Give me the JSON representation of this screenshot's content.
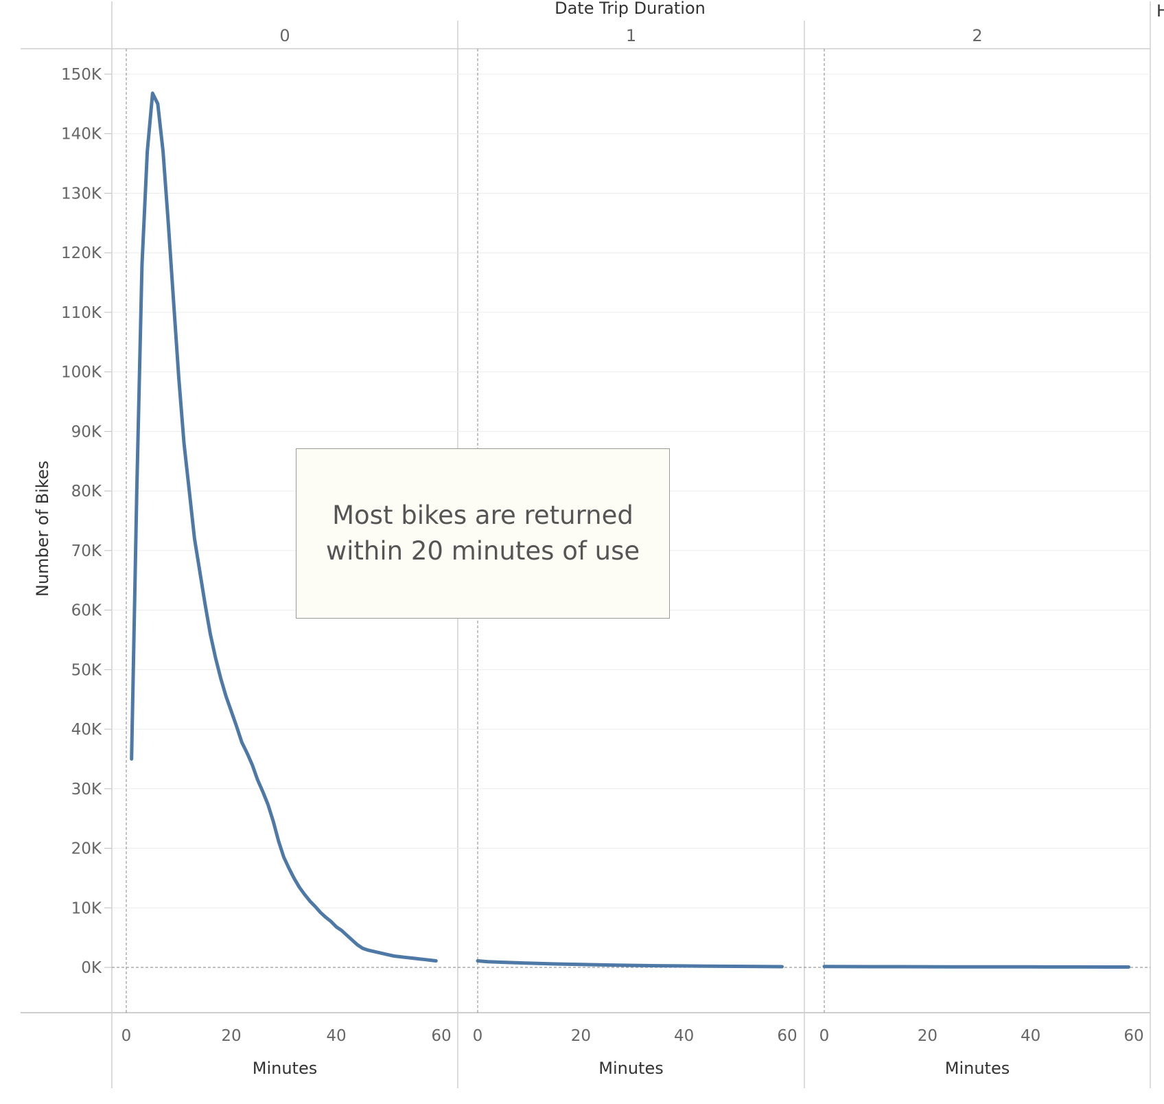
{
  "header": {
    "column_title": "Date Trip Duration",
    "right_cutoff": "H"
  },
  "annotation": {
    "text": "Most bikes are returned within 20 minutes of use"
  },
  "line_color": "#4e79a7",
  "chart_data": {
    "type": "line",
    "title": "",
    "ylabel": "Number of Bikes",
    "xlabel": "Minutes",
    "ylim": [
      0,
      155000
    ],
    "y_ticks": [
      "0K",
      "10K",
      "20K",
      "30K",
      "40K",
      "50K",
      "60K",
      "70K",
      "80K",
      "90K",
      "100K",
      "110K",
      "120K",
      "130K",
      "140K",
      "150K"
    ],
    "y_tick_values": [
      0,
      10000,
      20000,
      30000,
      40000,
      50000,
      60000,
      70000,
      80000,
      90000,
      100000,
      110000,
      120000,
      130000,
      140000,
      150000
    ],
    "panels": [
      {
        "header": "0",
        "xlabel": "Minutes",
        "xlim": [
          0,
          60
        ],
        "x_ticks": [
          "0",
          "20",
          "40",
          "60"
        ],
        "x_tick_values": [
          0,
          20,
          40,
          60
        ],
        "series": [
          {
            "x": [
              1,
              2,
              3,
              4,
              5,
              6,
              7,
              8,
              9,
              10,
              11,
              12,
              13,
              14,
              15,
              16,
              17,
              18,
              19,
              20,
              21,
              22,
              23,
              24,
              25,
              26,
              27,
              28,
              29,
              30,
              31,
              32,
              33,
              34,
              35,
              36,
              37,
              38,
              39,
              40,
              41,
              42,
              43,
              44,
              45,
              46,
              47,
              48,
              49,
              50,
              51,
              52,
              53,
              54,
              55,
              56,
              57,
              58,
              59
            ],
            "values": [
              35000,
              80000,
              118000,
              137000,
              146800,
              145000,
              137000,
              125000,
              112000,
              99000,
              88000,
              80000,
              72000,
              66500,
              61000,
              56000,
              52000,
              48500,
              45500,
              43000,
              40500,
              37800,
              36000,
              34000,
              31500,
              29500,
              27300,
              24500,
              21200,
              18500,
              16600,
              14900,
              13400,
              12200,
              11100,
              10200,
              9200,
              8400,
              7700,
              6800,
              6200,
              5400,
              4600,
              3800,
              3200,
              2900,
              2700,
              2500,
              2300,
              2100,
              1900,
              1800,
              1700,
              1600,
              1500,
              1400,
              1300,
              1200,
              1100
            ]
          }
        ]
      },
      {
        "header": "1",
        "xlabel": "Minutes",
        "xlim": [
          0,
          60
        ],
        "x_ticks": [
          "0",
          "20",
          "40",
          "60"
        ],
        "x_tick_values": [
          0,
          20,
          40,
          60
        ],
        "series": [
          {
            "x": [
              0,
              2,
              5,
              10,
              15,
              20,
              25,
              30,
              35,
              40,
              45,
              50,
              55,
              59
            ],
            "values": [
              1100,
              950,
              850,
              700,
              580,
              480,
              400,
              340,
              280,
              240,
              200,
              170,
              140,
              120
            ]
          }
        ]
      },
      {
        "header": "2",
        "xlabel": "Minutes",
        "xlim": [
          0,
          60
        ],
        "x_ticks": [
          "0",
          "20",
          "40",
          "60"
        ],
        "x_tick_values": [
          0,
          20,
          40,
          60
        ],
        "series": [
          {
            "x": [
              0,
              5,
              10,
              15,
              20,
              25,
              30,
              35,
              40,
              45,
              50,
              55,
              59
            ],
            "values": [
              150,
              130,
              120,
              110,
              100,
              90,
              85,
              80,
              75,
              70,
              65,
              60,
              55
            ]
          }
        ]
      }
    ]
  }
}
